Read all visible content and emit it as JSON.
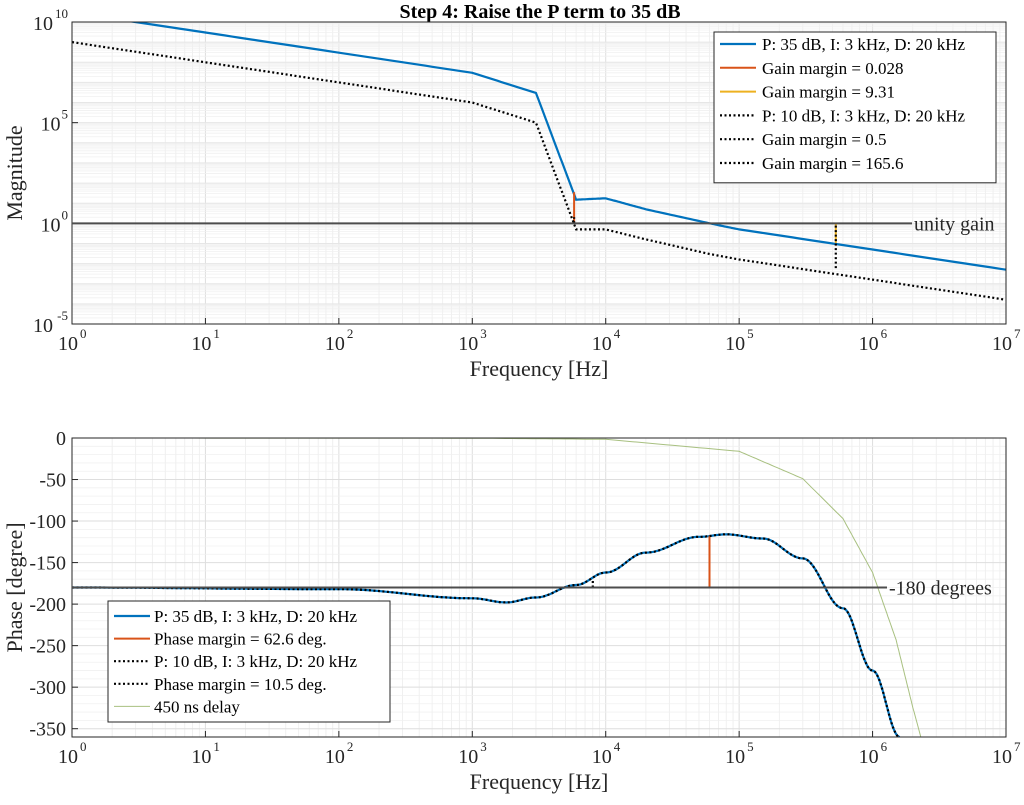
{
  "title": "Step 4: Raise the P term to 35 dB",
  "colors": {
    "blue": "#0072bd",
    "orange": "#d95319",
    "yellow": "#edb120",
    "black": "#000000",
    "delay": "#a8c080",
    "unity_line": "#4d4d4d"
  },
  "chart_data": [
    {
      "type": "line",
      "name": "magnitude",
      "xlabel": "Frequency [Hz]",
      "ylabel": "Magnitude",
      "xscale": "log",
      "yscale": "log",
      "xlim": [
        1,
        10000000
      ],
      "ylim": [
        1e-05,
        10000000000
      ],
      "x_ticks": [
        1,
        10,
        100,
        1000,
        10000,
        100000,
        1000000,
        10000000
      ],
      "x_tick_exponents": [
        "0",
        "1",
        "2",
        "3",
        "4",
        "5",
        "6",
        "7"
      ],
      "y_ticks": [
        1e-05,
        1,
        100000,
        10000000000
      ],
      "y_tick_exponents": [
        "-5",
        "0",
        "5",
        "10"
      ],
      "grid": true,
      "legend_position": "top-right",
      "series": [
        {
          "name": "P: 35 dB, I: 3 kHz, D: 20 kHz",
          "style": "solid-blue",
          "x": [
            1,
            10,
            100,
            1000,
            3000,
            6000,
            10000,
            20000,
            60000,
            100000,
            1000000,
            10000000
          ],
          "y": [
            30000000000,
            3000000000,
            300000000,
            30000000,
            3000000,
            15,
            17.5,
            5,
            1,
            0.5,
            0.05,
            0.005
          ]
        },
        {
          "name": "Gain margin = 0.028",
          "style": "solid-orange",
          "x": [
            5800,
            5800
          ],
          "y": [
            1,
            35
          ]
        },
        {
          "name": "Gain margin = 9.31",
          "style": "solid-yellow",
          "x": [
            530000,
            530000
          ],
          "y": [
            0.107,
            1
          ]
        },
        {
          "name": "P: 10 dB, I: 3 kHz, D: 20 kHz",
          "style": "dotted-black",
          "x": [
            1,
            10,
            100,
            1000,
            3000,
            6000,
            10000,
            20000,
            60000,
            100000,
            1000000,
            10000000
          ],
          "y": [
            1000000000,
            100000000,
            10000000,
            1000000,
            100000,
            0.5,
            0.5,
            0.16,
            0.03,
            0.016,
            0.0016,
            0.00016
          ]
        },
        {
          "name": "Gain margin = 0.5",
          "style": "dotted-black",
          "x": [
            5800,
            5800
          ],
          "y": [
            1,
            2
          ]
        },
        {
          "name": "Gain margin = 165.6",
          "style": "dotted-black",
          "x": [
            530000,
            530000
          ],
          "y": [
            0.006,
            1
          ]
        }
      ],
      "annotations": [
        "unity gain"
      ]
    },
    {
      "type": "line",
      "name": "phase",
      "xlabel": "Frequency [Hz]",
      "ylabel": "Phase [degree]",
      "xscale": "log",
      "yscale": "linear",
      "xlim": [
        1,
        10000000
      ],
      "ylim": [
        -360,
        0
      ],
      "x_ticks": [
        1,
        10,
        100,
        1000,
        10000,
        100000,
        1000000,
        10000000
      ],
      "x_tick_exponents": [
        "0",
        "1",
        "2",
        "3",
        "4",
        "5",
        "6",
        "7"
      ],
      "y_ticks": [
        0,
        -50,
        -100,
        -150,
        -200,
        -250,
        -300,
        -350
      ],
      "grid": true,
      "legend_position": "bottom-left",
      "series": [
        {
          "name": "P: 35 dB, I: 3 kHz, D: 20 kHz",
          "style": "solid-blue",
          "x": [
            1,
            100,
            1000,
            1800,
            3000,
            6000,
            10000,
            20000,
            50000,
            80000,
            150000,
            300000,
            600000,
            1000000,
            1600000
          ],
          "y": [
            -180,
            -182,
            -193,
            -198,
            -192,
            -177,
            -162,
            -138,
            -119,
            -116,
            -121,
            -145,
            -205,
            -280,
            -360
          ]
        },
        {
          "name": "Phase margin = 62.6 deg.",
          "style": "solid-orange",
          "x": [
            60000,
            60000
          ],
          "y": [
            -180,
            -117.4
          ]
        },
        {
          "name": "P: 10 dB, I: 3 kHz, D: 20 kHz",
          "style": "dotted-black",
          "x": [
            1,
            100,
            1000,
            1800,
            3000,
            6000,
            10000,
            20000,
            50000,
            80000,
            150000,
            300000,
            600000,
            1000000,
            1600000
          ],
          "y": [
            -180,
            -182,
            -193,
            -198,
            -192,
            -177,
            -162,
            -138,
            -119,
            -116,
            -121,
            -145,
            -205,
            -280,
            -360
          ]
        },
        {
          "name": "Phase margin = 10.5 deg.",
          "style": "dotted-black",
          "x": [
            8000,
            8000
          ],
          "y": [
            -180,
            -169.5
          ]
        },
        {
          "name": "450 ns delay",
          "style": "thin-green",
          "x": [
            1,
            1000,
            10000,
            100000,
            300000,
            600000,
            1000000,
            1500000,
            2000000,
            2300000
          ],
          "y": [
            0,
            -0.2,
            -1.6,
            -16,
            -49,
            -97,
            -162,
            -243,
            -324,
            -360
          ]
        }
      ],
      "annotations": [
        "-180 degrees"
      ]
    }
  ]
}
